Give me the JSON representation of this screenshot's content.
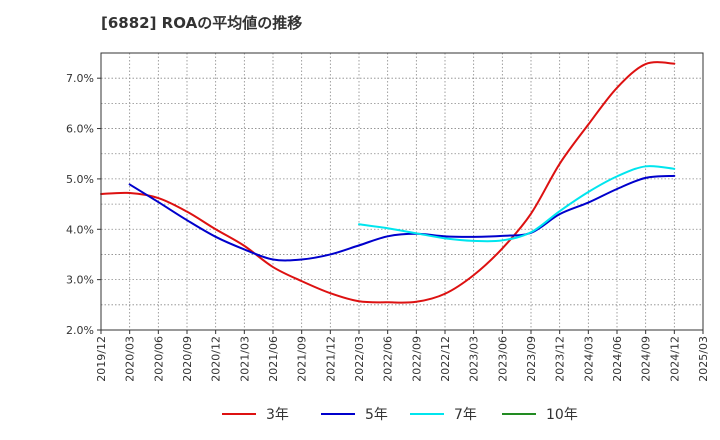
{
  "chart_data": {
    "type": "line",
    "title": "[6882]  ROAの平均値の推移",
    "xlabel": "",
    "ylabel": "",
    "ylim": [
      2.0,
      7.5
    ],
    "grid": true,
    "legend_position": "bottom",
    "x_ticks": [
      "2019/12",
      "2020/03",
      "2020/06",
      "2020/09",
      "2020/12",
      "2021/03",
      "2021/06",
      "2021/09",
      "2021/12",
      "2022/03",
      "2022/06",
      "2022/09",
      "2022/12",
      "2023/03",
      "2023/06",
      "2023/09",
      "2023/12",
      "2024/03",
      "2024/06",
      "2024/09",
      "2024/12",
      "2025/03"
    ],
    "y_ticks": [
      {
        "value": 2.0,
        "label": "2.0%"
      },
      {
        "value": 3.0,
        "label": "3.0%"
      },
      {
        "value": 4.0,
        "label": "4.0%"
      },
      {
        "value": 5.0,
        "label": "5.0%"
      },
      {
        "value": 6.0,
        "label": "6.0%"
      },
      {
        "value": 7.0,
        "label": "7.0%"
      }
    ],
    "series": [
      {
        "name": "3年",
        "color": "#dd1111",
        "x": [
          "2019/12",
          "2020/03",
          "2020/06",
          "2020/09",
          "2020/12",
          "2021/03",
          "2021/06",
          "2021/09",
          "2021/12",
          "2022/03",
          "2022/06",
          "2022/09",
          "2022/12",
          "2023/03",
          "2023/06",
          "2023/09",
          "2023/12",
          "2024/03",
          "2024/06",
          "2024/09",
          "2024/12"
        ],
        "values": [
          4.7,
          4.72,
          4.62,
          4.35,
          4.0,
          3.67,
          3.25,
          2.97,
          2.73,
          2.57,
          2.55,
          2.56,
          2.72,
          3.09,
          3.62,
          4.31,
          5.3,
          6.08,
          6.81,
          7.28,
          7.29
        ]
      },
      {
        "name": "5年",
        "color": "#0000cc",
        "x": [
          "2020/03",
          "2020/06",
          "2020/09",
          "2020/12",
          "2021/03",
          "2021/06",
          "2021/09",
          "2021/12",
          "2022/03",
          "2022/06",
          "2022/09",
          "2022/12",
          "2023/03",
          "2023/06",
          "2023/09",
          "2023/12",
          "2024/03",
          "2024/06",
          "2024/09",
          "2024/12"
        ],
        "values": [
          4.89,
          4.54,
          4.18,
          3.85,
          3.6,
          3.4,
          3.4,
          3.5,
          3.68,
          3.86,
          3.91,
          3.86,
          3.85,
          3.87,
          3.93,
          4.3,
          4.53,
          4.8,
          5.02,
          5.06
        ]
      },
      {
        "name": "7年",
        "color": "#00e5ee",
        "x": [
          "2022/03",
          "2022/06",
          "2022/09",
          "2022/12",
          "2023/03",
          "2023/06",
          "2023/09",
          "2023/12",
          "2024/03",
          "2024/06",
          "2024/09",
          "2024/12"
        ],
        "values": [
          4.1,
          4.02,
          3.92,
          3.82,
          3.77,
          3.78,
          3.94,
          4.36,
          4.74,
          5.05,
          5.25,
          5.2
        ]
      },
      {
        "name": "10年",
        "color": "#228b22",
        "x": [],
        "values": []
      }
    ]
  }
}
